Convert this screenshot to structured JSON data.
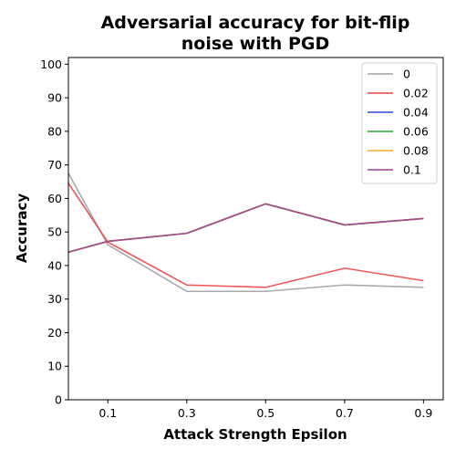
{
  "chart_data": {
    "type": "line",
    "title_lines": [
      "Adversarial accuracy for bit-flip",
      "noise with PGD"
    ],
    "xlabel": "Attack Strength Epsilon",
    "ylabel": "Accuracy",
    "x": [
      0.0,
      0.1,
      0.3,
      0.5,
      0.7,
      0.9
    ],
    "x_tick_values": [
      0.1,
      0.3,
      0.5,
      0.7,
      0.9
    ],
    "x_tick_labels": [
      "0.1",
      "0.3",
      "0.5",
      "0.7",
      "0.9"
    ],
    "xlim": [
      0.0,
      0.95
    ],
    "ylim": [
      0,
      102
    ],
    "y_ticks": [
      0,
      10,
      20,
      30,
      40,
      50,
      60,
      70,
      80,
      90,
      100
    ],
    "grid": false,
    "legend_position": "top-right",
    "series": [
      {
        "name": "0",
        "color": "#a0a0a0",
        "values": [
          67.5,
          46.2,
          32.3,
          32.3,
          34.2,
          33.5
        ]
      },
      {
        "name": "0.02",
        "color": "#ee4444",
        "values": [
          64.5,
          47.0,
          34.2,
          33.5,
          39.2,
          35.5
        ]
      },
      {
        "name": "0.04",
        "color": "#3344dd",
        "values": [
          44.0,
          47.2,
          49.6,
          58.4,
          52.1,
          54.0
        ]
      },
      {
        "name": "0.06",
        "color": "#2ca02c",
        "values": [
          44.0,
          47.2,
          49.6,
          58.4,
          52.1,
          54.0
        ]
      },
      {
        "name": "0.08",
        "color": "#ffa91a",
        "values": [
          44.0,
          47.2,
          49.6,
          58.4,
          52.1,
          54.0
        ]
      },
      {
        "name": "0.1",
        "color": "#9b3f9b",
        "values": [
          44.0,
          47.2,
          49.6,
          58.4,
          52.1,
          54.0
        ]
      }
    ]
  }
}
